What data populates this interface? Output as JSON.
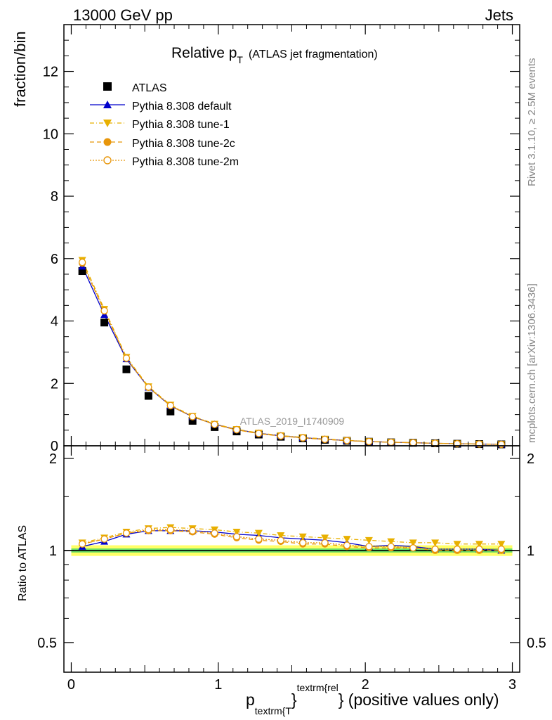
{
  "header": {
    "left": "13000 GeV pp",
    "right": "Jets"
  },
  "side_labels": {
    "rivet": "Rivet 3.1.10, ≥ 2.5M events",
    "mcplots": "mcplots.cern.ch [arXiv:1306.3436]"
  },
  "colors": {
    "atlas": "#000000",
    "default": "#0000cc",
    "tune1": "#e8b000",
    "tune2c": "#e8960a",
    "tune2m": "#e8960a",
    "band_outer": "#ffff66",
    "band_inner": "#66dd66"
  },
  "chart_data": [
    {
      "type": "line",
      "panel": "main",
      "title": "Relative p",
      "title_sub": "T",
      "title_note": "(ATLAS jet fragmentation)",
      "ylabel": "fraction/bin",
      "watermark": "ATLAS_2019_I1740909",
      "xlim": [
        -0.05,
        3.05
      ],
      "ylim": [
        0,
        13.5
      ],
      "yticks": [
        0,
        2,
        4,
        6,
        8,
        10,
        12
      ],
      "ytick_labels": [
        "0",
        "2",
        "4",
        "6",
        "8",
        "10",
        "12"
      ],
      "x": [
        0.075,
        0.225,
        0.375,
        0.525,
        0.675,
        0.825,
        0.975,
        1.125,
        1.275,
        1.425,
        1.575,
        1.725,
        1.875,
        2.025,
        2.175,
        2.325,
        2.475,
        2.625,
        2.775,
        2.925
      ],
      "series": [
        {
          "name": "ATLAS",
          "marker": "square",
          "values": [
            5.6,
            3.95,
            2.45,
            1.6,
            1.1,
            0.8,
            0.6,
            0.46,
            0.36,
            0.29,
            0.24,
            0.19,
            0.16,
            0.13,
            0.11,
            0.095,
            0.08,
            0.065,
            0.055,
            0.045
          ]
        },
        {
          "name": "Pythia 8.308 default",
          "marker": "triangle-up",
          "line": "solid",
          "values": [
            5.75,
            4.2,
            2.78,
            1.87,
            1.28,
            0.93,
            0.69,
            0.52,
            0.4,
            0.32,
            0.26,
            0.21,
            0.17,
            0.135,
            0.115,
            0.098,
            0.081,
            0.066,
            0.056,
            0.045
          ]
        },
        {
          "name": "Pythia 8.308 tune-1",
          "marker": "triangle-down",
          "line": "dashdot",
          "values": [
            5.95,
            4.38,
            2.84,
            1.9,
            1.31,
            0.95,
            0.7,
            0.53,
            0.41,
            0.33,
            0.27,
            0.22,
            0.175,
            0.14,
            0.118,
            0.1,
            0.083,
            0.068,
            0.058,
            0.047
          ]
        },
        {
          "name": "Pythia 8.308 tune-2c",
          "marker": "circle",
          "line": "dashed",
          "values": [
            5.85,
            4.32,
            2.8,
            1.87,
            1.28,
            0.93,
            0.68,
            0.51,
            0.39,
            0.31,
            0.25,
            0.2,
            0.165,
            0.133,
            0.113,
            0.097,
            0.08,
            0.065,
            0.055,
            0.045
          ]
        },
        {
          "name": "Pythia 8.308 tune-2m",
          "marker": "open-circle",
          "line": "dotted",
          "values": [
            5.88,
            4.33,
            2.81,
            1.88,
            1.29,
            0.935,
            0.685,
            0.515,
            0.395,
            0.315,
            0.255,
            0.205,
            0.168,
            0.135,
            0.114,
            0.098,
            0.081,
            0.066,
            0.056,
            0.046
          ]
        }
      ]
    },
    {
      "type": "line",
      "panel": "ratio",
      "ylabel": "Ratio to ATLAS",
      "xlabel_main": "p",
      "xlabel_sub": "textrm{T",
      "xlabel_sup": "textrm{rel",
      "xlabel_brace": "}",
      "xlabel_tail": "} (positive values only)",
      "xlim": [
        -0.05,
        3.05
      ],
      "ylim": [
        0.4,
        2.2
      ],
      "log_y": true,
      "yticks": [
        0.5,
        1,
        2
      ],
      "ytick_labels": [
        "0.5",
        "1",
        "2"
      ],
      "xticks": [
        0,
        1,
        2,
        3
      ],
      "xtick_labels": [
        "0",
        "1",
        "2",
        "3"
      ],
      "x": [
        0.075,
        0.225,
        0.375,
        0.525,
        0.675,
        0.825,
        0.975,
        1.125,
        1.275,
        1.425,
        1.575,
        1.725,
        1.875,
        2.025,
        2.175,
        2.325,
        2.475,
        2.625,
        2.775,
        2.925
      ],
      "band": {
        "outer": [
          0.96,
          1.04
        ],
        "inner": [
          0.985,
          1.015
        ]
      },
      "series": [
        {
          "name": "Pythia 8.308 default",
          "values": [
            1.03,
            1.07,
            1.13,
            1.16,
            1.16,
            1.16,
            1.15,
            1.13,
            1.12,
            1.1,
            1.09,
            1.08,
            1.06,
            1.03,
            1.04,
            1.03,
            1.01,
            1.01,
            1.01,
            1.0
          ]
        },
        {
          "name": "Pythia 8.308 tune-1",
          "values": [
            1.06,
            1.1,
            1.15,
            1.18,
            1.19,
            1.18,
            1.17,
            1.15,
            1.14,
            1.12,
            1.11,
            1.1,
            1.09,
            1.08,
            1.07,
            1.06,
            1.06,
            1.05,
            1.05,
            1.05
          ]
        },
        {
          "name": "Pythia 8.308 tune-2c",
          "values": [
            1.05,
            1.09,
            1.14,
            1.16,
            1.16,
            1.15,
            1.13,
            1.1,
            1.08,
            1.07,
            1.05,
            1.05,
            1.03,
            1.02,
            1.02,
            1.02,
            1.0,
            1.0,
            1.0,
            1.0
          ]
        },
        {
          "name": "Pythia 8.308 tune-2m",
          "values": [
            1.05,
            1.09,
            1.14,
            1.17,
            1.17,
            1.16,
            1.14,
            1.11,
            1.09,
            1.08,
            1.06,
            1.06,
            1.04,
            1.03,
            1.03,
            1.02,
            1.01,
            1.01,
            1.01,
            1.01
          ]
        }
      ]
    }
  ]
}
